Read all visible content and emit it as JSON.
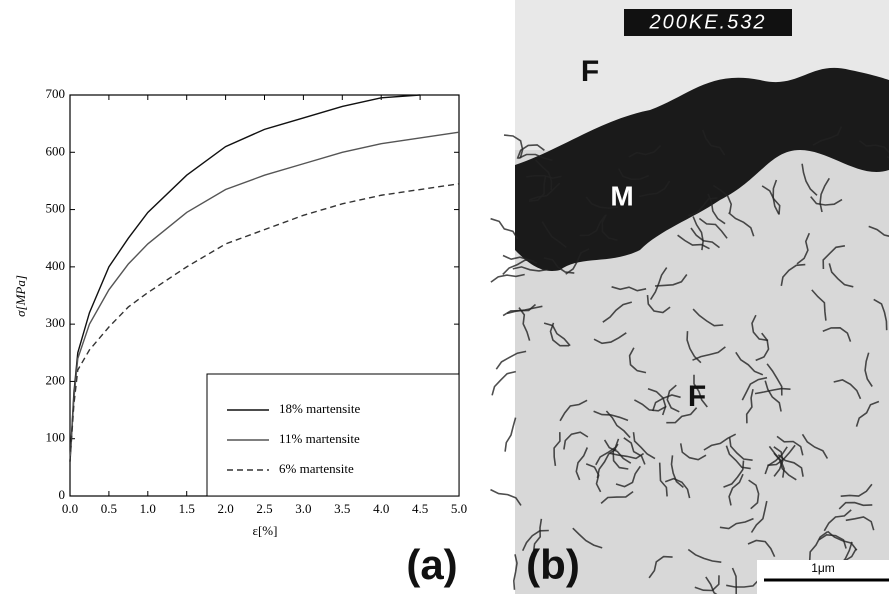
{
  "chart_data": {
    "type": "line",
    "x_label": "ε[%]",
    "y_label": "σ[MPa]",
    "x": [
      0,
      0.05,
      0.1,
      0.25,
      0.5,
      0.75,
      1.0,
      1.5,
      2.0,
      2.5,
      3.0,
      3.5,
      4.0,
      4.5,
      5.0
    ],
    "series": [
      {
        "name": "18% martensite",
        "color": "#111111",
        "dash": "none",
        "values": [
          60,
          180,
          250,
          320,
          400,
          450,
          495,
          560,
          610,
          640,
          660,
          680,
          695,
          700,
          null
        ]
      },
      {
        "name": "11% martensite",
        "color": "#555555",
        "dash": "none",
        "values": [
          60,
          170,
          240,
          300,
          360,
          405,
          440,
          495,
          535,
          560,
          580,
          600,
          615,
          625,
          635
        ]
      },
      {
        "name": "6% martensite",
        "color": "#333333",
        "dash": "6,4",
        "values": [
          60,
          160,
          220,
          255,
          295,
          330,
          355,
          400,
          440,
          465,
          490,
          510,
          525,
          535,
          545
        ]
      }
    ],
    "xlim": [
      0,
      5
    ],
    "ylim": [
      0,
      700
    ],
    "xticks": [
      {
        "value": 0,
        "label": "0.0"
      },
      0.5,
      {
        "value": 1,
        "label": "1.0"
      },
      1.5,
      {
        "value": 2,
        "label": "2.0"
      },
      2.5,
      {
        "value": 3,
        "label": "3.0"
      },
      3.5,
      {
        "value": 4,
        "label": "4.0"
      },
      4.5,
      {
        "value": 5,
        "label": "5.0"
      }
    ],
    "yticks": [
      0,
      100,
      200,
      300,
      400,
      500,
      600,
      700
    ],
    "legend": "lower right",
    "grid": false
  },
  "panel_labels": [
    "(a)",
    "(b)"
  ],
  "micrograph": {
    "header": "200KE.532",
    "labels": [
      "F",
      "M",
      "F"
    ],
    "scale_bar": "1μm"
  }
}
